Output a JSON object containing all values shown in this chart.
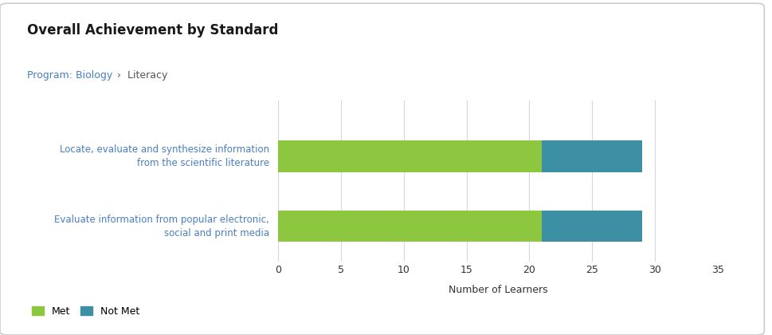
{
  "title": "Overall Achievement by Standard",
  "breadcrumb_link": "Program: Biology",
  "breadcrumb_rest": " ›  Literacy",
  "categories": [
    "Locate, evaluate and synthesize information\nfrom the scientific literature",
    "Evaluate information from popular electronic,\nsocial and print media"
  ],
  "met_values": [
    21,
    21
  ],
  "not_met_values": [
    8,
    8
  ],
  "met_color": "#8dc63f",
  "not_met_color": "#3d8fa4",
  "xlabel": "Number of Learners",
  "xlim": [
    0,
    35
  ],
  "xticks": [
    0,
    5,
    10,
    15,
    20,
    25,
    30,
    35
  ],
  "legend_met": "Met",
  "legend_not_met": "Not Met",
  "background_color": "#ffffff",
  "grid_color": "#d0d8e8",
  "label_color": "#4a7fc1",
  "title_color": "#1a1a1a",
  "breadcrumb_link_color": "#4a7fc1",
  "breadcrumb_text_color": "#555555"
}
